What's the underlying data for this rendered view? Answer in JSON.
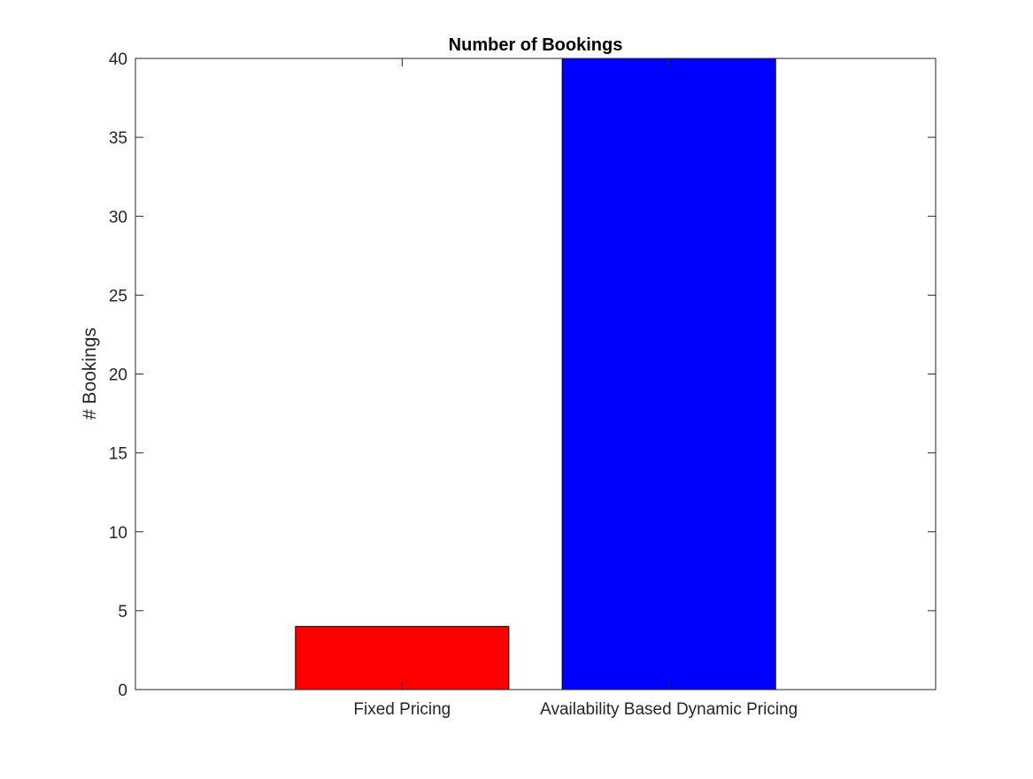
{
  "chart_data": {
    "type": "bar",
    "title": "Number of Bookings",
    "xlabel": "",
    "ylabel": "# Bookings",
    "categories": [
      "Fixed Pricing",
      "Availability Based Dynamic Pricing"
    ],
    "values": [
      4,
      40
    ],
    "bar_colors": [
      "#ff0000",
      "#0000ff"
    ],
    "ylim": [
      0,
      40
    ],
    "yticks": [
      0,
      5,
      10,
      15,
      20,
      25,
      30,
      35,
      40
    ],
    "xlim": [
      0,
      3
    ],
    "grid": false,
    "legend": "none"
  }
}
